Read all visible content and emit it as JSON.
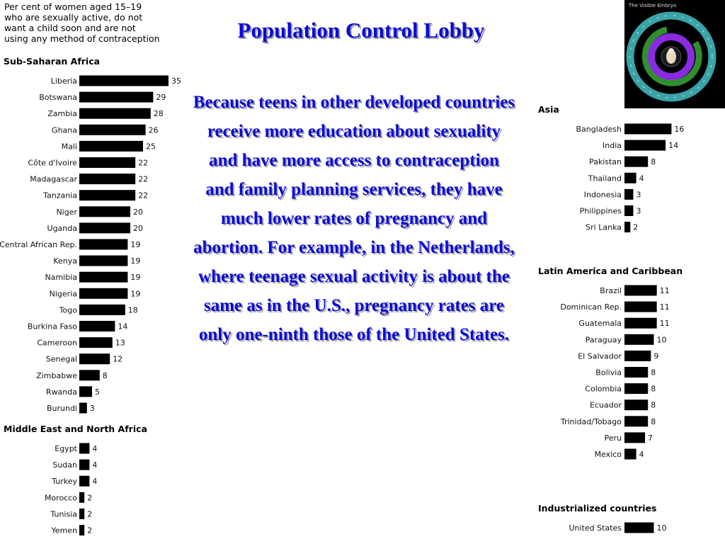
{
  "slide": {
    "title": "Population Control Lobby",
    "body": "Because teens in other developed countries receive more education about sexuality and have more access to contraception and family planning services, they have much lower rates of pregnancy and abortion. For example, in the Netherlands, where teenage sexual activity is about the same as in the U.S., pregnancy rates are only one-ninth those of the United States."
  },
  "embryo_image": {
    "caption": "The Visible Embryo"
  },
  "chart_data": {
    "type": "bar",
    "orientation": "horizontal",
    "title": "Per cent of women aged 15–19 who are sexually active, do not want a child soon and are not using any method of contraception",
    "title_lines": [
      "Per cent of women aged 15–19",
      "who are sexually active, do not",
      "want a child soon and are not",
      "using any method of contraception"
    ],
    "bar_color": "#000000",
    "groups": [
      {
        "name": "Sub-Saharan Africa",
        "items": [
          {
            "label": "Liberia",
            "value": 35
          },
          {
            "label": "Botswana",
            "value": 29
          },
          {
            "label": "Zambia",
            "value": 28
          },
          {
            "label": "Ghana",
            "value": 26
          },
          {
            "label": "Mali",
            "value": 25
          },
          {
            "label": "Côte d'Ivoire",
            "value": 22
          },
          {
            "label": "Madagascar",
            "value": 22
          },
          {
            "label": "Tanzania",
            "value": 22
          },
          {
            "label": "Niger",
            "value": 20
          },
          {
            "label": "Uganda",
            "value": 20
          },
          {
            "label": "Central African Rep.",
            "value": 19
          },
          {
            "label": "Kenya",
            "value": 19
          },
          {
            "label": "Namibia",
            "value": 19
          },
          {
            "label": "Nigeria",
            "value": 19
          },
          {
            "label": "Togo",
            "value": 18
          },
          {
            "label": "Burkina Faso",
            "value": 14
          },
          {
            "label": "Cameroon",
            "value": 13
          },
          {
            "label": "Senegal",
            "value": 12
          },
          {
            "label": "Zimbabwe",
            "value": 8
          },
          {
            "label": "Rwanda",
            "value": 5
          },
          {
            "label": "Burundi",
            "value": 3
          }
        ]
      },
      {
        "name": "Middle East and North Africa",
        "items": [
          {
            "label": "Egypt",
            "value": 4
          },
          {
            "label": "Sudan",
            "value": 4
          },
          {
            "label": "Turkey",
            "value": 4
          },
          {
            "label": "Morocco",
            "value": 2
          },
          {
            "label": "Tunisia",
            "value": 2
          },
          {
            "label": "Yemen",
            "value": 2
          }
        ]
      },
      {
        "name": "Asia",
        "items": [
          {
            "label": "Bangladesh",
            "value": 16
          },
          {
            "label": "India",
            "value": 14
          },
          {
            "label": "Pakistan",
            "value": 8
          },
          {
            "label": "Thailand",
            "value": 4
          },
          {
            "label": "Indonesia",
            "value": 3
          },
          {
            "label": "Philippines",
            "value": 3
          },
          {
            "label": "Sri Lanka",
            "value": 2
          }
        ]
      },
      {
        "name": "Latin America and Caribbean",
        "items": [
          {
            "label": "Brazil",
            "value": 11
          },
          {
            "label": "Dominican Rep.",
            "value": 11
          },
          {
            "label": "Guatemala",
            "value": 11
          },
          {
            "label": "Paraguay",
            "value": 10
          },
          {
            "label": "El Salvador",
            "value": 9
          },
          {
            "label": "Bolivia",
            "value": 8
          },
          {
            "label": "Colombia",
            "value": 8
          },
          {
            "label": "Ecuador",
            "value": 8
          },
          {
            "label": "Trinidad/Tobago",
            "value": 8
          },
          {
            "label": "Peru",
            "value": 7
          },
          {
            "label": "Mexico",
            "value": 4
          }
        ]
      },
      {
        "name": "Industrialized countries",
        "items": [
          {
            "label": "United States",
            "value": 10
          }
        ]
      }
    ]
  }
}
